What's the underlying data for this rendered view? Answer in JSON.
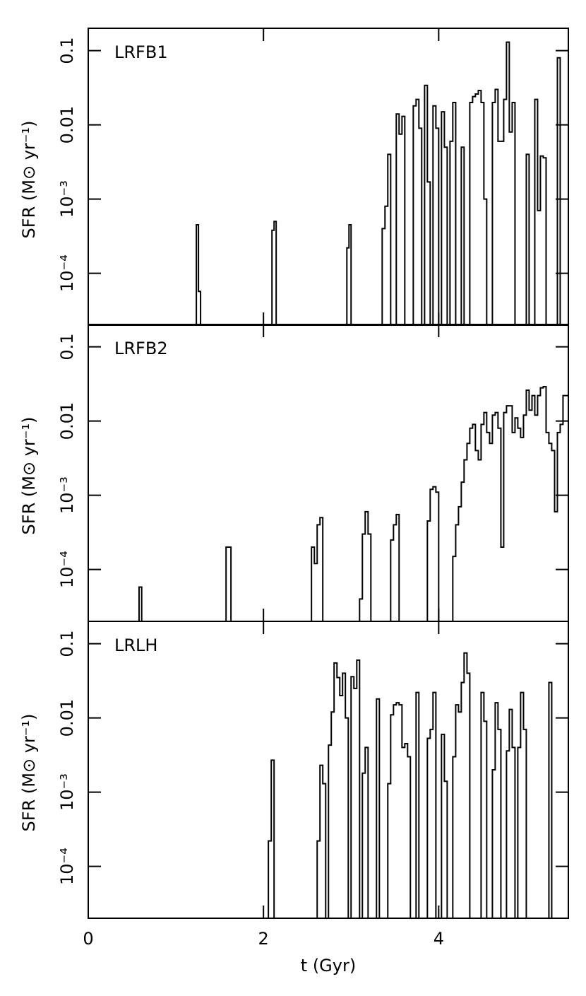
{
  "chart_data": [
    {
      "type": "step",
      "label": "LRFB1",
      "ylabel": "SFR (M⊙ yr⁻¹)",
      "log_y": true,
      "color": "#000000",
      "xlim": [
        0,
        5.48
      ],
      "ylim": [
        2e-05,
        0.2
      ],
      "yticks": [
        0.1,
        0.01,
        {
          "value": 0.001,
          "label": "10⁻³"
        },
        {
          "value": 0.0001,
          "label": "10⁻⁴"
        }
      ],
      "x": [
        1.234,
        1.258,
        1.282,
        2.097,
        2.121,
        2.145,
        2.952,
        2.976,
        3.0,
        3.355,
        3.387,
        3.419,
        3.452,
        3.516,
        3.548,
        3.581,
        3.613,
        3.71,
        3.742,
        3.774,
        3.806,
        3.839,
        3.871,
        3.903,
        3.935,
        3.968,
        4.0,
        4.032,
        4.065,
        4.097,
        4.129,
        4.161,
        4.194,
        4.258,
        4.29,
        4.355,
        4.387,
        4.419,
        4.452,
        4.484,
        4.516,
        4.548,
        4.613,
        4.645,
        4.677,
        4.71,
        4.742,
        4.774,
        4.806,
        4.839,
        4.871,
        5.0,
        5.032,
        5.097,
        5.129,
        5.161,
        5.194,
        5.226,
        5.355,
        5.387
      ],
      "values": [
        0.00045,
        5.7e-05,
        null,
        0.00038,
        0.0005,
        null,
        0.00022,
        0.00045,
        null,
        0.0004,
        0.0008,
        0.004,
        null,
        0.014,
        0.0075,
        0.013,
        null,
        0.018,
        0.022,
        0.009,
        null,
        0.034,
        0.0017,
        null,
        0.018,
        0.009,
        null,
        0.015,
        0.005,
        null,
        0.006,
        0.02,
        null,
        0.005,
        null,
        0.02,
        0.024,
        0.026,
        0.029,
        0.02,
        0.001,
        null,
        0.02,
        0.03,
        0.006,
        0.006,
        0.022,
        0.13,
        0.008,
        0.02,
        null,
        0.004,
        null,
        0.022,
        0.0007,
        0.0038,
        0.0036,
        null,
        0.08,
        null
      ]
    },
    {
      "type": "step",
      "label": "LRFB2",
      "ylabel": "SFR (M⊙ yr⁻¹)",
      "log_y": true,
      "color": "#000000",
      "xlim": [
        0,
        5.48
      ],
      "ylim": [
        2e-05,
        0.2
      ],
      "yticks": [
        0.1,
        0.01,
        {
          "value": 0.001,
          "label": "10⁻³"
        },
        {
          "value": 0.0001,
          "label": "10⁻⁴"
        }
      ],
      "x": [
        0.58,
        0.61,
        1.573,
        1.629,
        2.548,
        2.581,
        2.613,
        2.645,
        2.677,
        3.097,
        3.129,
        3.161,
        3.194,
        3.226,
        3.452,
        3.484,
        3.516,
        3.548,
        3.871,
        3.903,
        3.935,
        3.968,
        4.0,
        4.161,
        4.194,
        4.226,
        4.258,
        4.29,
        4.323,
        4.355,
        4.387,
        4.419,
        4.452,
        4.484,
        4.516,
        4.548,
        4.581,
        4.613,
        4.645,
        4.677,
        4.71,
        4.742,
        4.774,
        4.806,
        4.839,
        4.871,
        4.903,
        4.935,
        4.968,
        5.0,
        5.032,
        5.065,
        5.097,
        5.129,
        5.161,
        5.194,
        5.226,
        5.258,
        5.29,
        5.323,
        5.355,
        5.387,
        5.419,
        5.452,
        5.48
      ],
      "values": [
        5.8e-05,
        null,
        0.0002,
        null,
        0.0002,
        0.00012,
        0.0004,
        0.0005,
        null,
        4e-05,
        0.0003,
        0.0006,
        0.0003,
        null,
        0.00025,
        0.0004,
        0.00055,
        null,
        0.00045,
        0.0012,
        0.0013,
        0.0011,
        null,
        0.00015,
        0.0004,
        0.0007,
        0.0015,
        0.003,
        0.005,
        0.008,
        0.009,
        0.004,
        0.003,
        0.009,
        0.013,
        0.007,
        0.005,
        0.012,
        0.013,
        0.008,
        0.0002,
        0.013,
        0.016,
        0.016,
        0.007,
        0.011,
        0.008,
        0.006,
        0.012,
        0.026,
        0.014,
        0.022,
        0.012,
        0.022,
        0.028,
        0.029,
        0.007,
        0.005,
        0.004,
        0.0006,
        0.007,
        0.009,
        0.022,
        0.022,
        null
      ]
    },
    {
      "type": "step",
      "label": "LRLH",
      "ylabel": "SFR (M⊙ yr⁻¹)",
      "xlabel": "t (Gyr)",
      "log_y": true,
      "color": "#000000",
      "xlim": [
        0,
        5.48
      ],
      "ylim": [
        2e-05,
        0.2
      ],
      "xticks": [
        0,
        2,
        4
      ],
      "yticks": [
        0.1,
        0.01,
        {
          "value": 0.001,
          "label": "10⁻³"
        },
        {
          "value": 0.0001,
          "label": "10⁻⁴"
        }
      ],
      "x": [
        2.056,
        2.089,
        2.121,
        2.613,
        2.645,
        2.677,
        2.71,
        2.742,
        2.774,
        2.806,
        2.839,
        2.871,
        2.903,
        2.935,
        2.968,
        3.0,
        3.032,
        3.065,
        3.097,
        3.129,
        3.161,
        3.194,
        3.29,
        3.323,
        3.419,
        3.452,
        3.484,
        3.516,
        3.548,
        3.581,
        3.613,
        3.645,
        3.677,
        3.742,
        3.774,
        3.871,
        3.903,
        3.935,
        3.968,
        4.032,
        4.065,
        4.097,
        4.161,
        4.194,
        4.226,
        4.258,
        4.29,
        4.323,
        4.355,
        4.484,
        4.516,
        4.548,
        4.613,
        4.645,
        4.677,
        4.71,
        4.774,
        4.806,
        4.839,
        4.871,
        4.903,
        4.935,
        4.968,
        5.0,
        5.258,
        5.29
      ],
      "values": [
        0.00022,
        0.0027,
        null,
        0.00022,
        0.0023,
        0.0013,
        null,
        0.0043,
        0.012,
        0.055,
        0.035,
        0.02,
        0.04,
        0.01,
        null,
        0.036,
        0.025,
        0.06,
        null,
        0.0018,
        0.004,
        null,
        0.018,
        null,
        0.0013,
        0.011,
        0.015,
        0.016,
        0.015,
        0.004,
        0.0045,
        0.003,
        null,
        0.022,
        null,
        0.0053,
        0.007,
        0.022,
        null,
        0.006,
        0.0014,
        null,
        0.003,
        0.015,
        0.012,
        0.03,
        0.075,
        0.04,
        null,
        0.022,
        0.009,
        null,
        0.002,
        0.016,
        0.007,
        null,
        0.0036,
        0.013,
        0.004,
        null,
        0.004,
        0.022,
        0.007,
        null,
        0.03,
        null
      ]
    }
  ]
}
